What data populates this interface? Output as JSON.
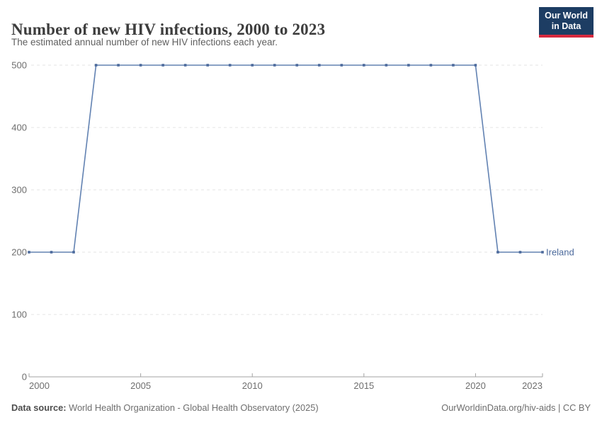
{
  "header": {
    "title": "Number of new HIV infections, 2000 to 2023",
    "subtitle": "The estimated annual number of new HIV infections each year."
  },
  "logo": {
    "line1": "Our World",
    "line2": "in Data",
    "bg_color": "#1d3d63",
    "accent_color": "#d6293e"
  },
  "chart_data": {
    "type": "line",
    "title": "Number of new HIV infections, 2000 to 2023",
    "xlabel": "",
    "ylabel": "",
    "xlim": [
      2000,
      2023
    ],
    "ylim": [
      0,
      500
    ],
    "x_ticks": [
      2000,
      2005,
      2010,
      2015,
      2020,
      2023
    ],
    "y_ticks": [
      0,
      100,
      200,
      300,
      400,
      500
    ],
    "grid": "horizontal-dashed",
    "legend_position": "end-of-line-label",
    "series": [
      {
        "name": "Ireland",
        "color": "#4c6a9c",
        "line_color": "#6282b2",
        "x": [
          2000,
          2001,
          2002,
          2003,
          2004,
          2005,
          2006,
          2007,
          2008,
          2009,
          2010,
          2011,
          2012,
          2013,
          2014,
          2015,
          2016,
          2017,
          2018,
          2019,
          2020,
          2021,
          2022,
          2023
        ],
        "values": [
          200,
          200,
          200,
          500,
          500,
          500,
          500,
          500,
          500,
          500,
          500,
          500,
          500,
          500,
          500,
          500,
          500,
          500,
          500,
          500,
          500,
          200,
          200,
          200
        ]
      }
    ],
    "colors": {
      "grid": "#e6e6e6",
      "axis": "#a3a3a3",
      "tick_text": "#6e6e6e"
    }
  },
  "footer": {
    "source_label": "Data source:",
    "source_text": "World Health Organization - Global Health Observatory (2025)",
    "credit": "OurWorldinData.org/hiv-aids | CC BY"
  }
}
